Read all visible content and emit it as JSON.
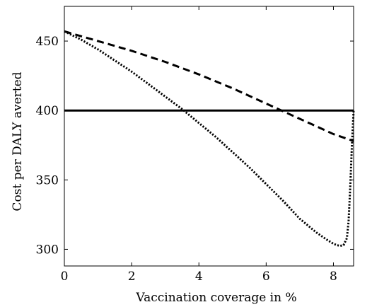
{
  "chart_data": {
    "type": "line",
    "title": "",
    "xlabel": "Vaccination coverage in %",
    "ylabel": "Cost per DALY averted",
    "xlim": [
      0,
      8.6
    ],
    "ylim": [
      288,
      475
    ],
    "x_ticks": [
      "0",
      "2",
      "4",
      "6",
      "8"
    ],
    "y_ticks": [
      "300",
      "350",
      "400",
      "450"
    ],
    "grid": false,
    "legend": "none",
    "series": [
      {
        "style": "solid",
        "color": "#000000",
        "x": [
          0,
          8.6
        ],
        "y": [
          400,
          400
        ]
      },
      {
        "style": "dashed",
        "color": "#000000",
        "x": [
          0,
          1,
          2,
          3,
          4,
          5,
          6,
          7,
          8,
          8.6
        ],
        "y": [
          457,
          450,
          443,
          435,
          426,
          416,
          405,
          394,
          383,
          378
        ]
      },
      {
        "style": "dotted",
        "color": "#000000",
        "x": [
          0,
          0.5,
          1,
          1.5,
          2,
          2.5,
          3,
          3.5,
          4,
          4.5,
          5,
          5.5,
          6,
          6.5,
          7,
          7.5,
          7.8,
          8.0,
          8.1,
          8.2,
          8.3,
          8.4,
          8.45,
          8.5,
          8.55,
          8.6
        ],
        "y": [
          457,
          451,
          444,
          436,
          428,
          419,
          410,
          401,
          391,
          381,
          370,
          359,
          347,
          335,
          322,
          312,
          307,
          304,
          303,
          302.5,
          303,
          308,
          320,
          345,
          375,
          400
        ]
      }
    ]
  }
}
